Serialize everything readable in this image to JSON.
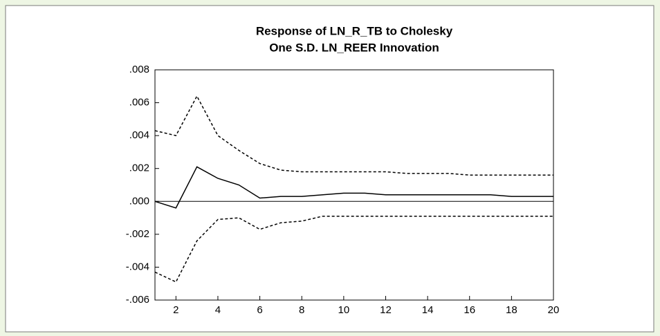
{
  "chart_data": {
    "type": "line",
    "title": [
      "Response of LN_R_TB to Cholesky",
      "One S.D. LN_REER Innovation"
    ],
    "x": [
      1,
      2,
      3,
      4,
      5,
      6,
      7,
      8,
      9,
      10,
      11,
      12,
      13,
      14,
      15,
      16,
      17,
      18,
      19,
      20
    ],
    "series": [
      {
        "color": "#000000",
        "dashed": false,
        "values": [
          0.0,
          -0.0004,
          0.0021,
          0.0014,
          0.001,
          0.0002,
          0.0003,
          0.0003,
          0.0004,
          0.0005,
          0.0005,
          0.0004,
          0.0004,
          0.0004,
          0.0004,
          0.0004,
          0.0004,
          0.0003,
          0.0003,
          0.0003
        ]
      },
      {
        "color": "#000000",
        "dashed": true,
        "values": [
          0.0043,
          0.004,
          0.0064,
          0.004,
          0.0031,
          0.0023,
          0.0019,
          0.0018,
          0.0018,
          0.0018,
          0.0018,
          0.0018,
          0.0017,
          0.0017,
          0.0017,
          0.0016,
          0.0016,
          0.0016,
          0.0016,
          0.0016
        ]
      },
      {
        "color": "#000000",
        "dashed": true,
        "values": [
          -0.0043,
          -0.0049,
          -0.0024,
          -0.0011,
          -0.001,
          -0.0017,
          -0.0013,
          -0.0012,
          -0.0009,
          -0.0009,
          -0.0009,
          -0.0009,
          -0.0009,
          -0.0009,
          -0.0009,
          -0.0009,
          -0.0009,
          -0.0009,
          -0.0009,
          -0.0009
        ]
      }
    ],
    "xlim": [
      1,
      20
    ],
    "xticks": [
      2,
      4,
      6,
      8,
      10,
      12,
      14,
      16,
      18,
      20
    ],
    "ylim": [
      -0.006,
      0.008
    ],
    "yticks": [
      {
        "value": 0.008,
        "label": ".008"
      },
      {
        "value": 0.006,
        "label": ".006"
      },
      {
        "value": 0.004,
        "label": ".004"
      },
      {
        "value": 0.002,
        "label": ".002"
      },
      {
        "value": 0,
        "label": ".000"
      },
      {
        "value": -0.002,
        "label": "-.002"
      },
      {
        "value": -0.004,
        "label": "-.004"
      },
      {
        "value": -0.006,
        "label": "-.006"
      }
    ],
    "zero_line": true
  }
}
